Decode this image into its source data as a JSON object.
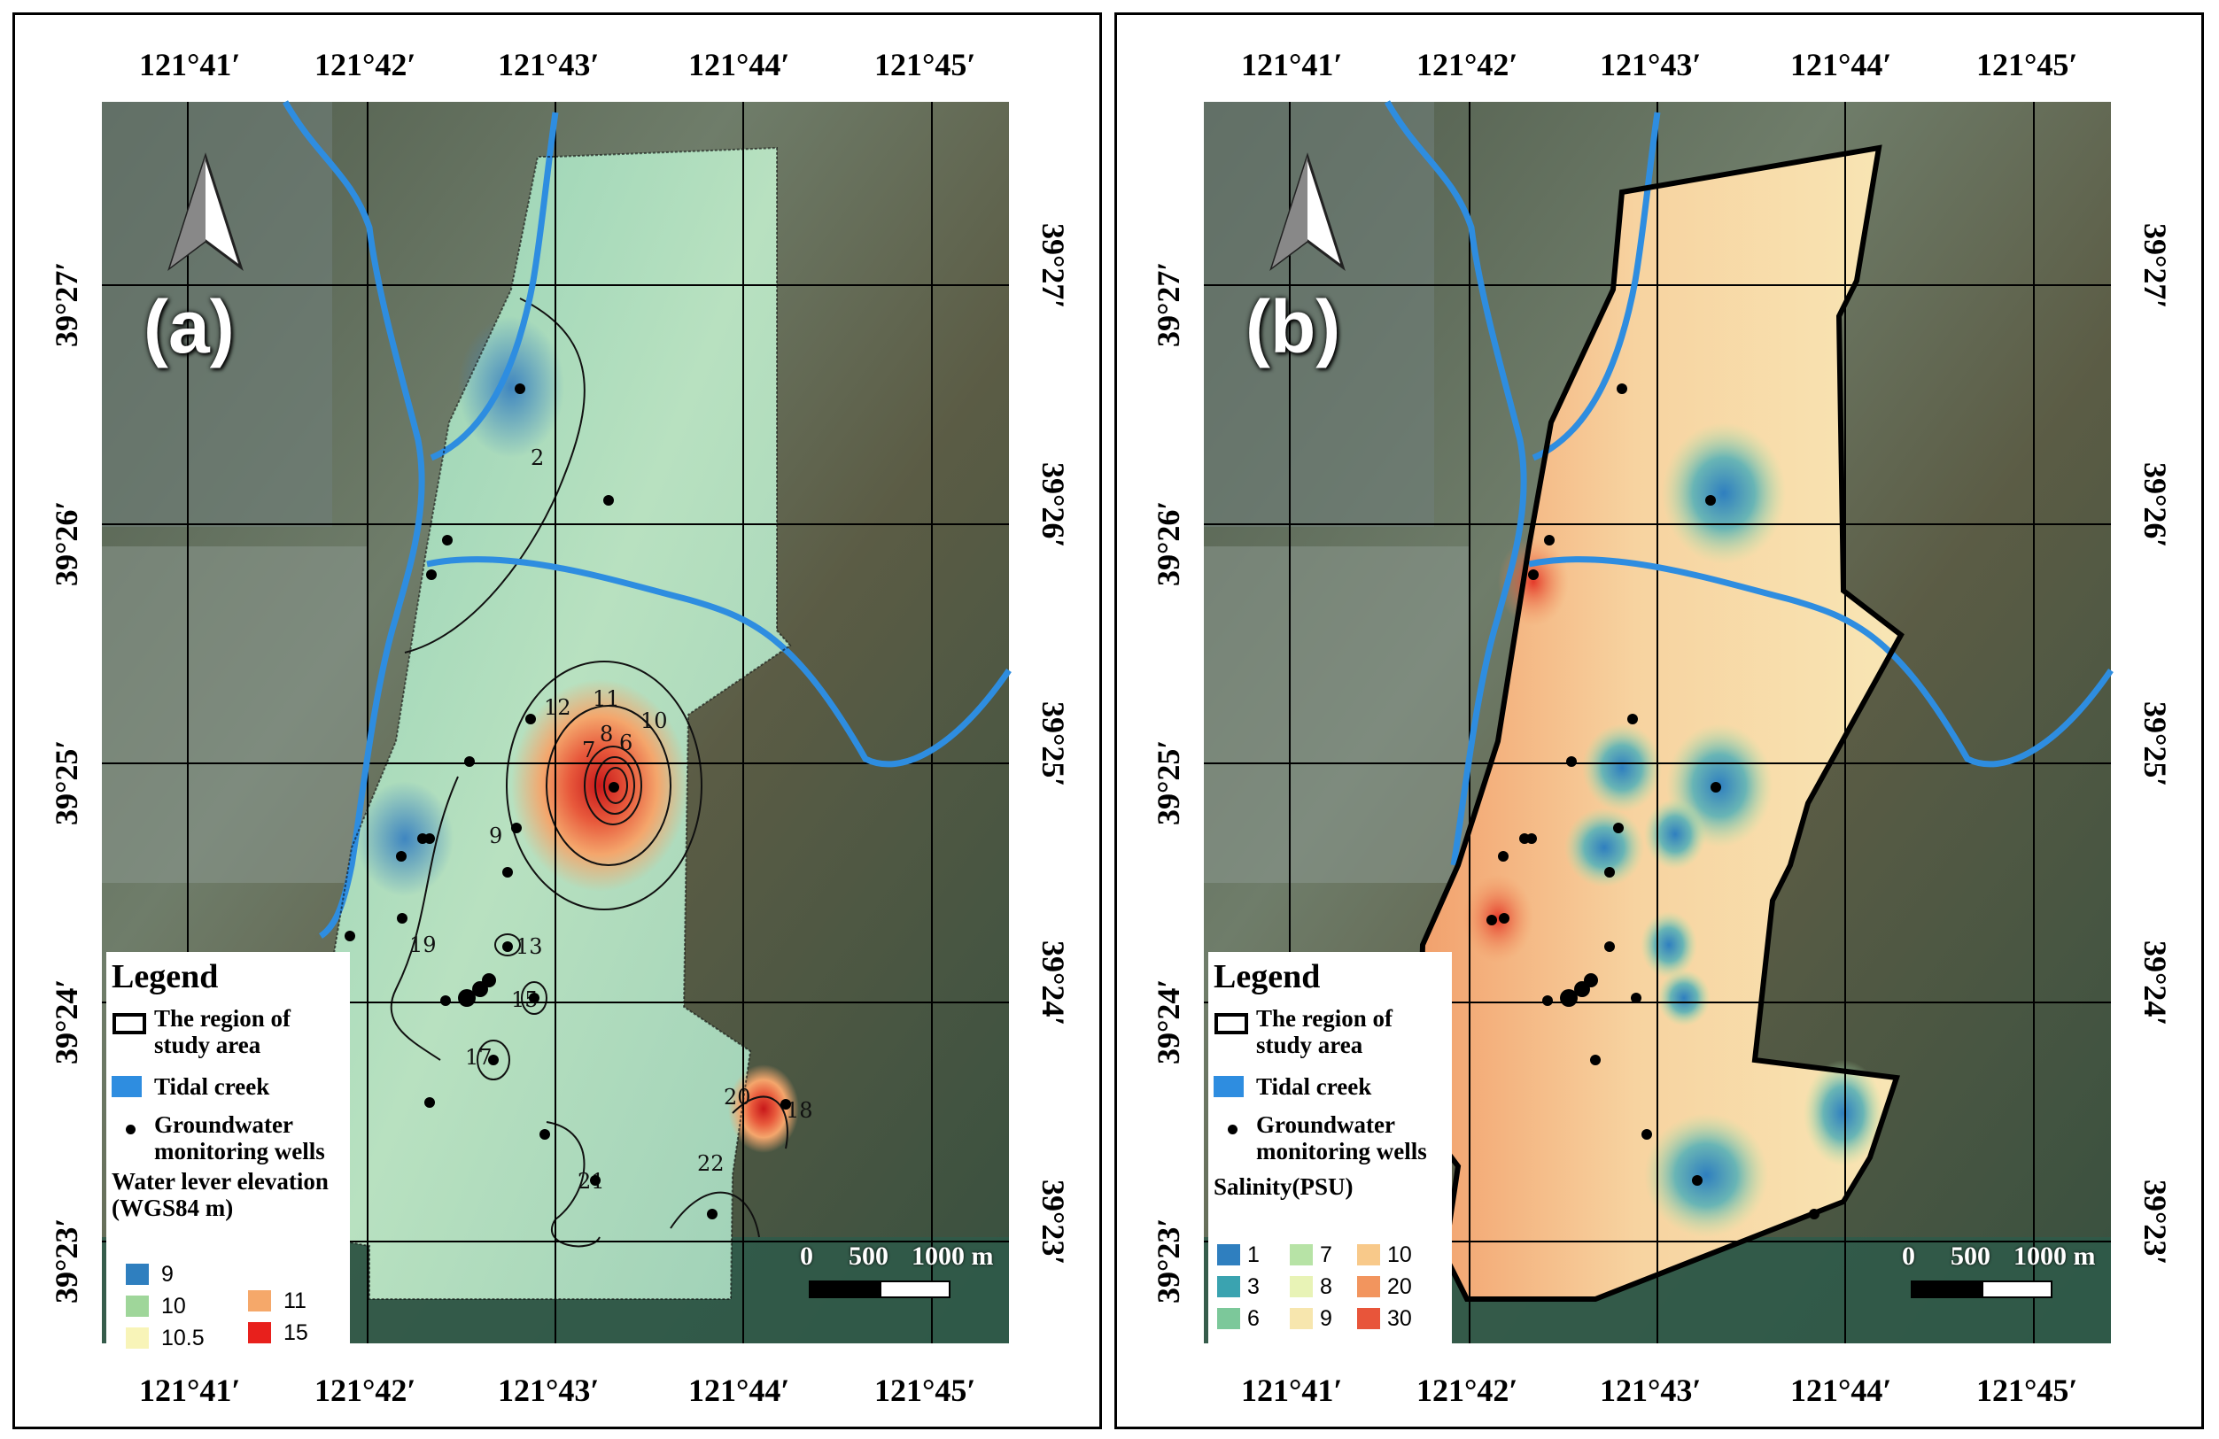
{
  "figure": {
    "longitude_labels": [
      "121°41′",
      "121°42′",
      "121°43′",
      "121°44′",
      "121°45′"
    ],
    "latitude_labels": [
      "39°27′",
      "39°26′",
      "39°25′",
      "39°24′",
      "39°23′"
    ]
  },
  "panel_a": {
    "label": "(a)",
    "legend": {
      "title": "Legend",
      "study_area": "The region of study area",
      "tidal_creek": "Tidal creek",
      "wells": "Groundwater monitoring wells",
      "variable": "Water lever elevation (WGS84 m)",
      "scale_items": [
        {
          "value": "9",
          "color": "#2f7fbf"
        },
        {
          "value": "10",
          "color": "#9fd69a"
        },
        {
          "value": "10.5",
          "color": "#f8f4b8"
        },
        {
          "value": "11",
          "color": "#f5a86a"
        },
        {
          "value": "15",
          "color": "#e8201c"
        }
      ]
    },
    "contour_labels": [
      "2",
      "12",
      "11",
      "10",
      "7",
      "8",
      "6",
      "9",
      "13",
      "15",
      "19",
      "17",
      "20",
      "21",
      "22",
      "18"
    ],
    "scalebar": {
      "zero": "0",
      "mid": "500",
      "end": "1000 m"
    }
  },
  "panel_b": {
    "label": "(b)",
    "legend": {
      "title": "Legend",
      "study_area": "The region of study area",
      "tidal_creek": "Tidal creek",
      "wells": "Groundwater monitoring wells",
      "variable": "Salinity(PSU)",
      "scale_items": [
        {
          "value": "1",
          "color": "#2f7fbf"
        },
        {
          "value": "3",
          "color": "#3aa3b0"
        },
        {
          "value": "6",
          "color": "#7cc89a"
        },
        {
          "value": "7",
          "color": "#b7e3a6"
        },
        {
          "value": "8",
          "color": "#e8f3b6"
        },
        {
          "value": "9",
          "color": "#f7e6ae"
        },
        {
          "value": "10",
          "color": "#f8c98a"
        },
        {
          "value": "20",
          "color": "#f2955e"
        },
        {
          "value": "30",
          "color": "#e8553a"
        }
      ]
    },
    "scalebar": {
      "zero": "0",
      "mid": "500",
      "end": "1000 m"
    }
  },
  "colors": {
    "tidal_creek": "#2e8de0",
    "well": "#000000",
    "boundary": "#000000",
    "grid": "#000000"
  }
}
